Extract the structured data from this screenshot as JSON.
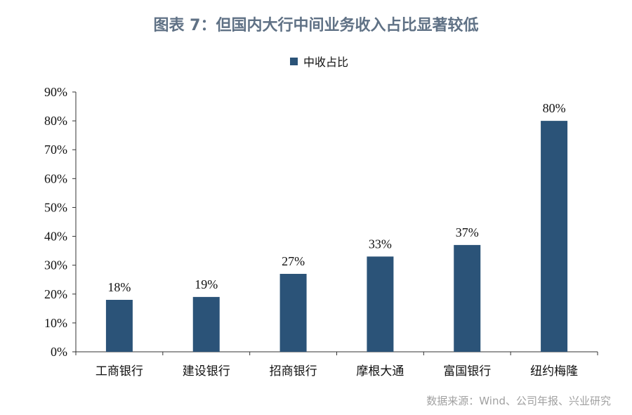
{
  "title": "图表 7：但国内大行中间业务收入占比显著较低",
  "source": "数据来源：Wind、公司年报、兴业研究",
  "colors": {
    "bar": "#2b5378",
    "axis": "#333333",
    "title": "#5f7185",
    "source": "#a1a1a1"
  },
  "chart_data": {
    "type": "bar",
    "categories": [
      "工商银行",
      "建设银行",
      "招商银行",
      "摩根大通",
      "富国银行",
      "纽约梅隆"
    ],
    "series": [
      {
        "name": "中收占比",
        "values": [
          18,
          19,
          27,
          33,
          37,
          80
        ]
      }
    ],
    "data_labels": [
      "18%",
      "19%",
      "27%",
      "33%",
      "37%",
      "80%"
    ],
    "y_ticks": [
      "0%",
      "10%",
      "20%",
      "30%",
      "40%",
      "50%",
      "60%",
      "70%",
      "80%",
      "90%"
    ],
    "ylim": [
      0,
      90
    ],
    "grid": false,
    "legend_position": "top-center"
  }
}
